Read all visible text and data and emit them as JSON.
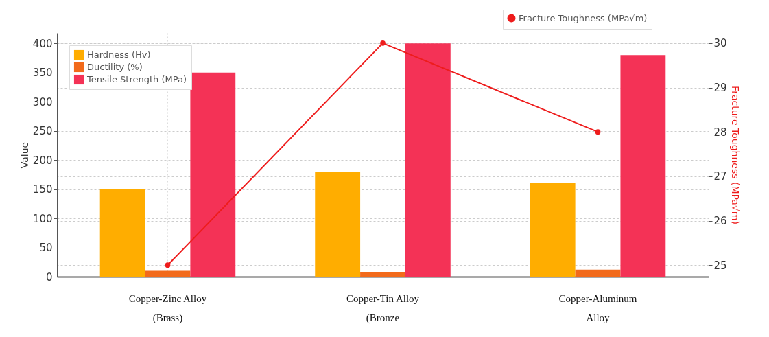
{
  "chart_data": {
    "type": "bar",
    "categories": [
      "Copper-Zinc Alloy (Brass)",
      "Copper-Tin Alloy (Bronze",
      "Copper-Aluminum Alloy"
    ],
    "series": [
      {
        "name": "Hardness (Hv)",
        "color": "#ffad00",
        "values": [
          150,
          180,
          160
        ]
      },
      {
        "name": "Ductility (%)",
        "color": "#f26a1b",
        "values": [
          10,
          8,
          12
        ]
      },
      {
        "name": "Tensile Strength (MPa)",
        "color": "#f43256",
        "values": [
          350,
          400,
          380
        ]
      },
      {
        "name": "Fracture Toughness (MPa√m)",
        "type": "line",
        "axis": "y2",
        "color": "#ee1c1c",
        "values": [
          25,
          30,
          28
        ]
      }
    ],
    "ylabel": "Value",
    "y2label": "Fracture Toughness (MPa√m)",
    "ylim": [
      0,
      418
    ],
    "yticks": [
      0,
      50,
      100,
      150,
      200,
      250,
      300,
      350,
      400
    ],
    "y2lim": [
      24.74,
      30.23
    ],
    "y2ticks": [
      25,
      26,
      27,
      28,
      29,
      30
    ],
    "grid": true,
    "legend": "top left",
    "marker": "circle",
    "line_style": "solid"
  }
}
